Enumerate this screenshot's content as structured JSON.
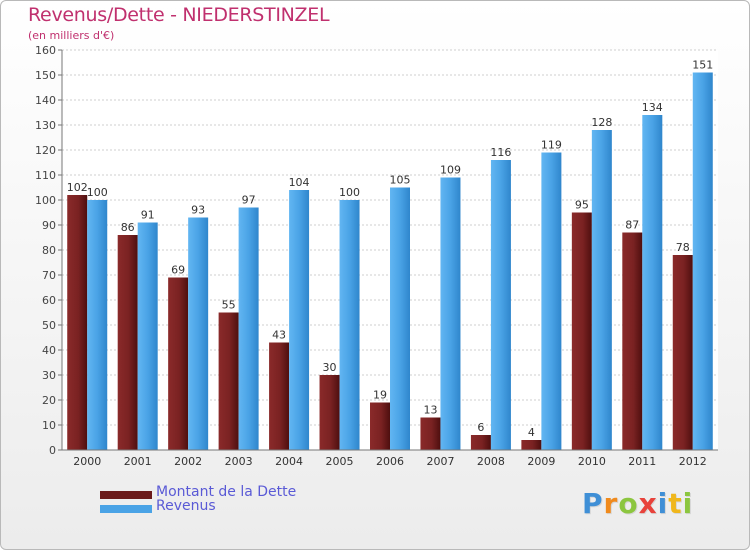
{
  "header": {
    "title": "Revenus/Dette - NIEDERSTINZEL",
    "subtitle": "(en milliers d'€)"
  },
  "chart_data": {
    "type": "bar",
    "title": "Revenus/Dette - NIEDERSTINZEL",
    "subtitle": "(en milliers d'€)",
    "xlabel": "",
    "ylabel": "",
    "ylim": [
      0,
      160
    ],
    "yticks": [
      0,
      10,
      20,
      30,
      40,
      50,
      60,
      70,
      80,
      90,
      100,
      110,
      120,
      130,
      140,
      150,
      160
    ],
    "grid": true,
    "legend_position": "bottom-left",
    "categories": [
      "2000",
      "2001",
      "2002",
      "2003",
      "2004",
      "2005",
      "2006",
      "2007",
      "2008",
      "2009",
      "2010",
      "2011",
      "2012"
    ],
    "series": [
      {
        "name": "Montant de la Dette",
        "color": "#6b1a1a",
        "values": [
          102,
          86,
          69,
          55,
          43,
          30,
          19,
          13,
          6,
          4,
          95,
          87,
          78
        ]
      },
      {
        "name": "Revenus",
        "color": "#4aa3e6",
        "values": [
          100,
          91,
          93,
          97,
          104,
          100,
          105,
          109,
          116,
          119,
          128,
          134,
          151
        ]
      }
    ]
  },
  "legend": {
    "items": [
      {
        "label": "Montant de la Dette",
        "color": "#6b1a1a"
      },
      {
        "label": "Revenus",
        "color": "#4aa3e6"
      }
    ]
  },
  "brand": {
    "letters": [
      "P",
      "r",
      "o",
      "x",
      "i",
      "t",
      "i"
    ],
    "colors": [
      "#3f8fd6",
      "#f08a1c",
      "#8cc63f",
      "#e8423b",
      "#3f8fd6",
      "#f0b71c",
      "#8cc63f"
    ]
  }
}
